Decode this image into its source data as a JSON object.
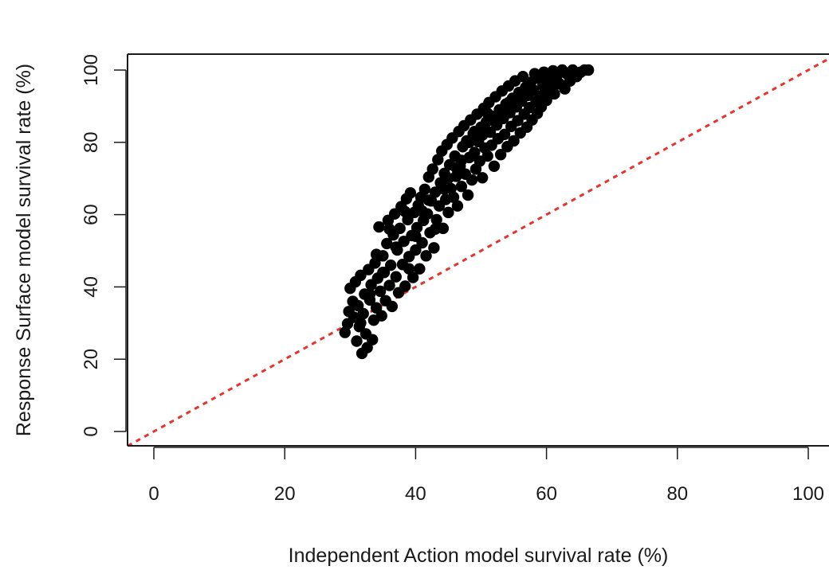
{
  "chart_data": {
    "type": "scatter",
    "title": "",
    "xlabel": "Independent Action model survival rate (%)",
    "ylabel": "Response Surface model survival rate (%)",
    "xlim": [
      -4,
      104
    ],
    "ylim": [
      -4,
      104
    ],
    "x_ticks": [
      0,
      20,
      40,
      60,
      80,
      100
    ],
    "y_ticks": [
      0,
      20,
      40,
      60,
      80,
      100
    ],
    "x_tick_labels": [
      "0",
      "20",
      "40",
      "60",
      "80",
      "100"
    ],
    "y_tick_labels": [
      "0",
      "20",
      "40",
      "60",
      "80",
      "100"
    ],
    "grid": false,
    "reference_line": {
      "type": "identity",
      "style": "dotted",
      "color": "#e8322b",
      "intercept": 0,
      "slope": 1
    },
    "series": [
      {
        "marker": "filled-circle",
        "color": "#000000",
        "points": [
          [
            29.2,
            27.4
          ],
          [
            29.6,
            29.8
          ],
          [
            29.8,
            33.2
          ],
          [
            30.0,
            39.6
          ],
          [
            30.4,
            36.0
          ],
          [
            30.6,
            31.6
          ],
          [
            30.8,
            41.4
          ],
          [
            31.0,
            25.0
          ],
          [
            31.2,
            34.8
          ],
          [
            31.4,
            29.0
          ],
          [
            31.6,
            43.2
          ],
          [
            31.8,
            21.6
          ],
          [
            32.0,
            32.6
          ],
          [
            32.2,
            38.0
          ],
          [
            32.4,
            27.0
          ],
          [
            32.6,
            23.2
          ],
          [
            32.8,
            44.8
          ],
          [
            33.0,
            36.4
          ],
          [
            33.2,
            40.6
          ],
          [
            33.4,
            25.4
          ],
          [
            33.6,
            30.8
          ],
          [
            33.8,
            46.6
          ],
          [
            34.0,
            34.2
          ],
          [
            34.2,
            42.4
          ],
          [
            34.4,
            56.6
          ],
          [
            34.6,
            38.8
          ],
          [
            34.8,
            32.0
          ],
          [
            35.0,
            48.6
          ],
          [
            35.2,
            44.0
          ],
          [
            35.4,
            36.2
          ],
          [
            35.6,
            52.0
          ],
          [
            35.8,
            58.4
          ],
          [
            36.0,
            40.4
          ],
          [
            36.2,
            46.0
          ],
          [
            36.4,
            34.6
          ],
          [
            36.6,
            54.4
          ],
          [
            36.8,
            60.2
          ],
          [
            37.0,
            42.8
          ],
          [
            37.2,
            50.2
          ],
          [
            37.4,
            38.4
          ],
          [
            37.6,
            56.2
          ],
          [
            37.8,
            62.2
          ],
          [
            38.0,
            46.2
          ],
          [
            38.2,
            52.6
          ],
          [
            38.4,
            40.2
          ],
          [
            38.6,
            64.4
          ],
          [
            38.8,
            58.6
          ],
          [
            39.0,
            48.4
          ],
          [
            39.2,
            66.0
          ],
          [
            39.4,
            54.2
          ],
          [
            39.6,
            42.6
          ],
          [
            39.8,
            60.6
          ],
          [
            40.0,
            50.2
          ],
          [
            40.2,
            56.4
          ],
          [
            40.4,
            62.6
          ],
          [
            40.6,
            45.0
          ],
          [
            40.8,
            64.8
          ],
          [
            41.0,
            52.2
          ],
          [
            41.2,
            58.4
          ],
          [
            41.4,
            67.0
          ],
          [
            41.6,
            48.6
          ],
          [
            41.8,
            60.2
          ],
          [
            42.0,
            70.4
          ],
          [
            42.2,
            55.0
          ],
          [
            42.4,
            63.8
          ],
          [
            42.6,
            72.6
          ],
          [
            42.8,
            50.8
          ],
          [
            43.0,
            66.2
          ],
          [
            43.2,
            58.6
          ],
          [
            43.4,
            75.2
          ],
          [
            43.6,
            62.4
          ],
          [
            43.8,
            68.8
          ],
          [
            44.0,
            77.6
          ],
          [
            44.2,
            56.2
          ],
          [
            44.4,
            71.4
          ],
          [
            44.6,
            64.2
          ],
          [
            44.8,
            79.4
          ],
          [
            45.0,
            60.6
          ],
          [
            45.2,
            73.8
          ],
          [
            45.4,
            67.2
          ],
          [
            45.6,
            81.2
          ],
          [
            45.8,
            64.8
          ],
          [
            46.0,
            76.2
          ],
          [
            46.2,
            70.6
          ],
          [
            46.4,
            62.4
          ],
          [
            46.6,
            83.0
          ],
          [
            46.8,
            73.4
          ],
          [
            47.0,
            67.8
          ],
          [
            47.2,
            78.8
          ],
          [
            47.4,
            84.6
          ],
          [
            47.6,
            71.2
          ],
          [
            47.8,
            80.4
          ],
          [
            48.0,
            65.4
          ],
          [
            48.2,
            75.8
          ],
          [
            48.4,
            86.2
          ],
          [
            48.6,
            69.6
          ],
          [
            48.8,
            82.4
          ],
          [
            49.0,
            77.2
          ],
          [
            49.2,
            72.6
          ],
          [
            49.4,
            87.8
          ],
          [
            49.6,
            80.2
          ],
          [
            49.8,
            74.8
          ],
          [
            50.0,
            84.2
          ],
          [
            50.2,
            70.2
          ],
          [
            50.4,
            89.4
          ],
          [
            50.6,
            78.4
          ],
          [
            50.8,
            85.6
          ],
          [
            51.0,
            76.2
          ],
          [
            51.2,
            91.0
          ],
          [
            51.4,
            82.8
          ],
          [
            51.6,
            79.2
          ],
          [
            51.8,
            87.2
          ],
          [
            52.0,
            73.4
          ],
          [
            52.2,
            92.6
          ],
          [
            52.4,
            84.8
          ],
          [
            52.6,
            81.0
          ],
          [
            52.8,
            89.0
          ],
          [
            53.0,
            76.6
          ],
          [
            53.2,
            94.2
          ],
          [
            53.4,
            86.6
          ],
          [
            53.6,
            82.2
          ],
          [
            53.8,
            90.6
          ],
          [
            54.0,
            78.8
          ],
          [
            54.2,
            95.6
          ],
          [
            54.4,
            88.2
          ],
          [
            54.6,
            84.4
          ],
          [
            54.8,
            92.2
          ],
          [
            55.0,
            80.4
          ],
          [
            55.2,
            97.0
          ],
          [
            55.4,
            89.8
          ],
          [
            55.6,
            86.0
          ],
          [
            55.8,
            93.8
          ],
          [
            56.0,
            82.6
          ],
          [
            56.2,
            91.4
          ],
          [
            56.4,
            98.2
          ],
          [
            56.6,
            87.8
          ],
          [
            56.8,
            95.2
          ],
          [
            57.0,
            84.2
          ],
          [
            57.2,
            93.0
          ],
          [
            57.4,
            89.6
          ],
          [
            57.6,
            96.6
          ],
          [
            57.8,
            86.2
          ],
          [
            58.0,
            94.4
          ],
          [
            58.2,
            99.0
          ],
          [
            58.4,
            91.2
          ],
          [
            58.6,
            88.0
          ],
          [
            58.8,
            97.8
          ],
          [
            59.0,
            92.8
          ],
          [
            59.2,
            89.8
          ],
          [
            59.4,
            95.8
          ],
          [
            59.6,
            99.4
          ],
          [
            59.8,
            94.0
          ],
          [
            60.0,
            91.6
          ],
          [
            60.4,
            97.2
          ],
          [
            60.8,
            95.4
          ],
          [
            61.0,
            99.8
          ],
          [
            61.2,
            93.4
          ],
          [
            61.6,
            98.4
          ],
          [
            62.0,
            96.2
          ],
          [
            62.4,
            100.0
          ],
          [
            62.8,
            94.8
          ],
          [
            63.2,
            98.8
          ],
          [
            63.6,
            97.0
          ],
          [
            64.0,
            100.0
          ],
          [
            64.6,
            98.2
          ],
          [
            65.2,
            99.4
          ],
          [
            65.8,
            100.0
          ],
          [
            66.4,
            100.0
          ],
          [
            34.0,
            49.0
          ],
          [
            36.0,
            56.0
          ],
          [
            38.4,
            60.8
          ],
          [
            39.0,
            45.0
          ],
          [
            41.0,
            61.0
          ],
          [
            43.0,
            56.0
          ],
          [
            44.4,
            67.0
          ],
          [
            46.2,
            73.0
          ],
          [
            48.2,
            80.0
          ],
          [
            50.2,
            82.0
          ],
          [
            52.4,
            86.0
          ],
          [
            54.2,
            91.0
          ],
          [
            40.0,
            54.0
          ],
          [
            37.0,
            51.0
          ],
          [
            35.0,
            44.0
          ],
          [
            33.0,
            38.0
          ],
          [
            31.6,
            30.0
          ],
          [
            45.0,
            70.0
          ],
          [
            42.0,
            64.0
          ],
          [
            47.0,
            75.0
          ],
          [
            49.0,
            83.0
          ],
          [
            51.0,
            88.0
          ]
        ]
      }
    ]
  }
}
